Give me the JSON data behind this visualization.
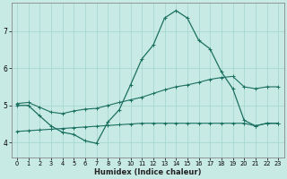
{
  "xlabel": "Humidex (Indice chaleur)",
  "background_color": "#c8eae4",
  "grid_color": "#a8d8d0",
  "line_color": "#1a7060",
  "ylim": [
    3.6,
    7.75
  ],
  "xlim": [
    -0.5,
    23.5
  ],
  "yticks": [
    4,
    5,
    6,
    7
  ],
  "xticks": [
    0,
    1,
    2,
    3,
    4,
    5,
    6,
    7,
    8,
    9,
    10,
    11,
    12,
    13,
    14,
    15,
    16,
    17,
    18,
    19,
    20,
    21,
    22,
    23
  ],
  "series1_x": [
    0,
    1,
    2,
    3,
    4,
    5,
    6,
    7,
    8,
    9,
    10,
    11,
    12,
    13,
    14,
    15,
    16,
    17,
    18,
    19,
    20,
    21,
    22,
    23
  ],
  "series1_y": [
    5.0,
    5.0,
    4.72,
    4.45,
    4.28,
    4.22,
    4.05,
    3.98,
    4.55,
    4.88,
    5.55,
    6.25,
    6.62,
    7.35,
    7.55,
    7.35,
    6.75,
    6.52,
    5.9,
    5.45,
    4.6,
    4.45,
    4.52,
    4.52
  ],
  "series2_x": [
    0,
    1,
    2,
    3,
    4,
    5,
    6,
    7,
    8,
    9,
    10,
    11,
    12,
    13,
    14,
    15,
    16,
    17,
    18,
    19,
    20,
    21,
    22,
    23
  ],
  "series2_y": [
    5.05,
    5.08,
    4.95,
    4.82,
    4.78,
    4.85,
    4.9,
    4.92,
    5.0,
    5.08,
    5.15,
    5.22,
    5.32,
    5.42,
    5.5,
    5.55,
    5.62,
    5.7,
    5.75,
    5.78,
    5.5,
    5.45,
    5.5,
    5.5
  ],
  "series3_x": [
    0,
    1,
    2,
    3,
    4,
    5,
    6,
    7,
    8,
    9,
    10,
    11,
    12,
    13,
    14,
    15,
    16,
    17,
    18,
    19,
    20,
    21,
    22,
    23
  ],
  "series3_y": [
    4.3,
    4.32,
    4.34,
    4.36,
    4.38,
    4.4,
    4.42,
    4.44,
    4.46,
    4.48,
    4.5,
    4.52,
    4.52,
    4.52,
    4.52,
    4.52,
    4.52,
    4.52,
    4.52,
    4.52,
    4.52,
    4.45,
    4.52,
    4.52
  ]
}
